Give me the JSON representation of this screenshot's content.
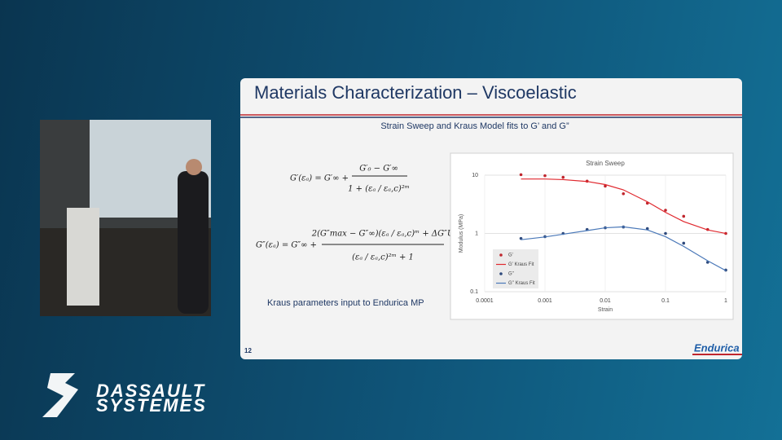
{
  "slide": {
    "title": "Materials Characterization  – Viscoelastic",
    "subtitle": "Strain Sweep and Kraus Model fits to G’ and G”",
    "equation_1": {
      "lhs": "G′(εₐ) = G′∞ +",
      "numerator": "G′₀ − G′∞",
      "denominator": "1 + (εₐ / εₐ,c)²ᵐ"
    },
    "equation_2": {
      "lhs": "G″(εₐ) = G″∞ +",
      "numerator": "2(G″max − G″∞)(εₐ / εₐ,c)ᵐ + ΔG″U",
      "denominator": "(εₐ / εₐ,c)²ᵐ + 1"
    },
    "caption": "Kraus parameters input to Endurica MP",
    "page_number": "12",
    "logo": "Endurica"
  },
  "brand": {
    "line_1": "DASSAULT",
    "line_2": "SYSTEMES"
  },
  "chart_data": {
    "type": "scatter",
    "title": "Strain Sweep",
    "x_label": "Strain",
    "y_label": "Modulus (MPa)",
    "log_x": true,
    "log_y": true,
    "grid": true,
    "xlim": [
      0.0001,
      1
    ],
    "xticks": [
      0.0001,
      0.001,
      0.01,
      0.1,
      1
    ],
    "ylim": [
      0.1,
      10
    ],
    "yticks": [
      0.1,
      1,
      10
    ],
    "x": [
      0.0004,
      0.001,
      0.002,
      0.005,
      0.01,
      0.02,
      0.05,
      0.1,
      0.2,
      0.5,
      1
    ],
    "series": [
      {
        "name": "G’",
        "color": "#c0262d",
        "style": "markers",
        "values": [
          10.2,
          9.8,
          9.2,
          7.9,
          6.5,
          4.8,
          3.3,
          2.5,
          1.97,
          1.17,
          1.0
        ]
      },
      {
        "name": "G’ Kraus Fit",
        "color": "#e0282e",
        "style": "line",
        "values": [
          8.6,
          8.6,
          8.4,
          7.8,
          6.9,
          5.6,
          3.5,
          2.3,
          1.6,
          1.15,
          1.0
        ]
      },
      {
        "name": "G’’",
        "color": "#2e4a7d",
        "style": "markers",
        "values": [
          0.82,
          0.88,
          1.0,
          1.17,
          1.25,
          1.29,
          1.21,
          1.0,
          0.68,
          0.32,
          0.235
        ]
      },
      {
        "name": "G’’ Kraus Fit",
        "color": "#4a78b8",
        "style": "line",
        "values": [
          0.78,
          0.87,
          0.97,
          1.12,
          1.25,
          1.3,
          1.15,
          0.88,
          0.6,
          0.34,
          0.23
        ]
      }
    ]
  }
}
